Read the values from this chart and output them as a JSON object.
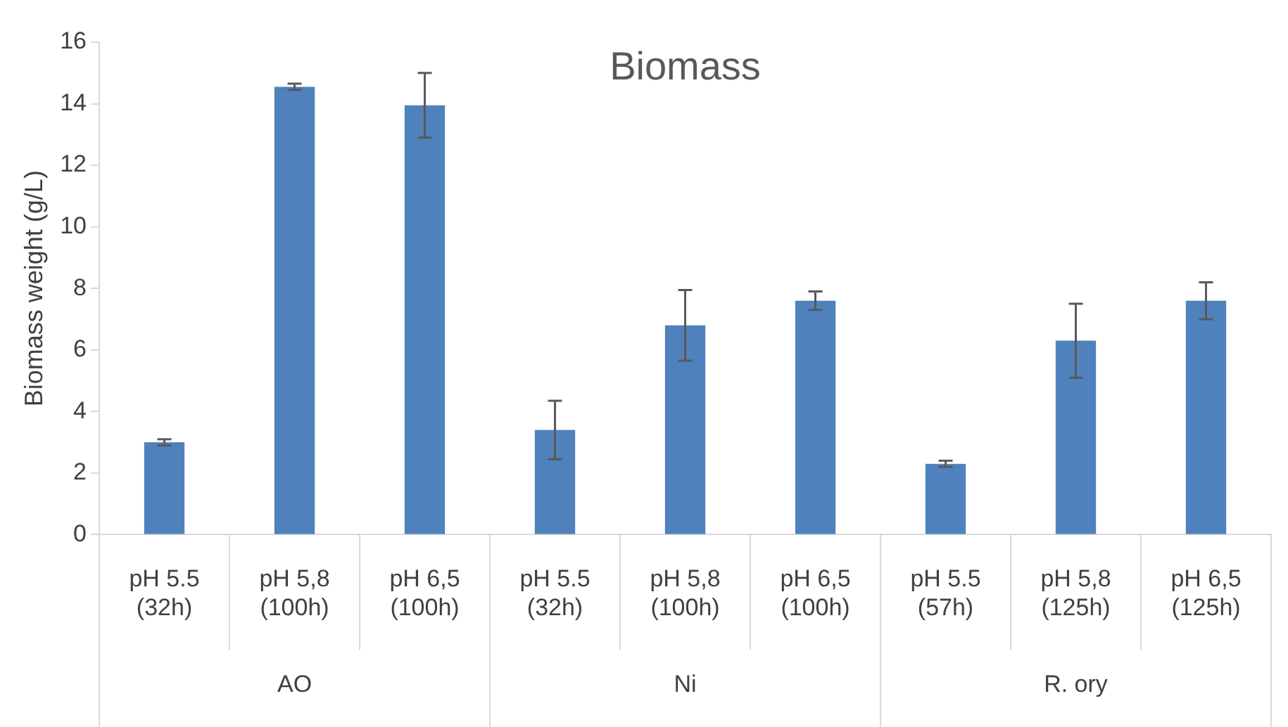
{
  "chart_data": {
    "type": "bar",
    "title": "Biomass",
    "ylabel": "Biomass weight (g/L)",
    "categories": [
      "pH 5.5 (32h)",
      "pH 5,8 (100h)",
      "pH 6,5 (100h)",
      "pH 5.5 (32h)",
      "pH 5,8 (100h)",
      "pH 6,5 (100h)",
      "pH 5.5 (57h)",
      "pH 5,8 (125h)",
      "pH 6,5 (125h)"
    ],
    "values": [
      3.0,
      14.55,
      13.95,
      3.4,
      6.8,
      7.6,
      2.3,
      6.3,
      7.6
    ],
    "errors": [
      0.1,
      0.1,
      1.05,
      0.95,
      1.15,
      0.3,
      0.1,
      1.2,
      0.6
    ],
    "color": "#4f81bd",
    "ylim": [
      0,
      16
    ],
    "yticks": [
      0,
      2,
      4,
      6,
      8,
      10,
      12,
      14,
      16
    ],
    "annotations": [
      "AO",
      "Ni",
      "R. ory"
    ],
    "legend": false
  }
}
